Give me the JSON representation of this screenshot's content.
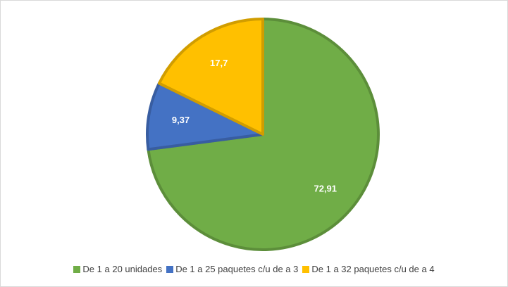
{
  "chart_data": {
    "type": "pie",
    "categories": [
      "De 1 a 20 unidades",
      "De 1 a 25 paquetes c/u de a 3",
      "De 1 a 32 paquetes c/u de a 4"
    ],
    "values": [
      72.91,
      9.37,
      17.7
    ],
    "value_labels": [
      "72,91",
      "9,37",
      "17,7"
    ],
    "colors": [
      "#70ad47",
      "#4472c4",
      "#ffc000"
    ],
    "legend": "bottom"
  }
}
